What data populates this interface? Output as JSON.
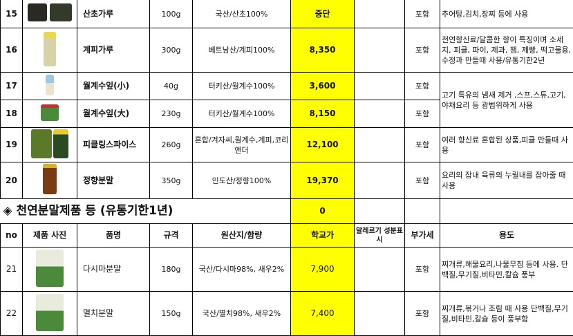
{
  "rows_top": [
    {
      "no": "15",
      "name": "산초가루",
      "spec": "100g",
      "origin": "국산/산초100%",
      "price": "중단",
      "allergy": "",
      "vat": "포함",
      "usage": "추어탕,김치,장찌 등에 사용",
      "image": "dark-jars"
    },
    {
      "no": "16",
      "name": "계피가루",
      "spec": "300g",
      "origin": "베트남산/계피100%",
      "price": "8,350",
      "allergy": "",
      "vat": "포함",
      "usage": "천연향신료/달콤한 향이 특징이며 소세지, 피클, 파이, 제과, 잼, 제빵, 떡고물용, 수정과 만들때 사용/유통기한2년",
      "image": "yellow-cap-bottle"
    },
    {
      "no": "17",
      "name": "월계수잎(小)",
      "spec": "40g",
      "origin": "터키산/월계수100%",
      "price": "3,600",
      "allergy": "",
      "vat": "포함",
      "usage": "고기 특유의 냄새 제거 ,스프,스튜,고기,야채요리 등 광범위하게 사용",
      "image": "small-jar"
    },
    {
      "no": "18",
      "name": "월계수잎(大)",
      "spec": "230g",
      "origin": "터키산/월계수100%",
      "price": "8,150",
      "allergy": "",
      "vat": "포함",
      "image": "leaf-jar"
    },
    {
      "no": "19",
      "name": "피클링스파이스",
      "spec": "260g",
      "origin": "혼합/겨자씨,월계수,계피,코리앤더",
      "price": "12,100",
      "allergy": "",
      "vat": "포함",
      "usage": "여러 향신료 혼합된 상품,피클 만들때 사용",
      "image": "green-box-jar"
    },
    {
      "no": "20",
      "name": "정향분말",
      "spec": "350g",
      "origin": "인도산/정향100%",
      "price": "19,370",
      "allergy": "",
      "vat": "포함",
      "usage": "요리의 잡내 육류의 누릴내를 잡아줄 때 사용",
      "image": "brown-bottle"
    }
  ],
  "section": {
    "marker": "◈",
    "title": "천연분말제품 등 (유통기한1년)",
    "price_total": "0"
  },
  "header": {
    "no": "no",
    "photo": "제품 사진",
    "name": "품명",
    "spec": "규격",
    "origin": "원산지/함량",
    "price": "학교가",
    "allergy": "알레르기 성분표시",
    "vat": "부가세",
    "usage": "용도"
  },
  "rows_bottom": [
    {
      "no": "21",
      "name": "다시마분말",
      "spec": "180g",
      "origin": "국산/다시마98%, 새우2%",
      "price": "7,900",
      "allergy": "",
      "vat": "포함",
      "usage": "찌개류,해물요리,나물무침 등에 사용. 단백질,무기질,비타민,칼슘 풍부",
      "image": "powder-jar"
    },
    {
      "no": "22",
      "name": "멸치분말",
      "spec": "150g",
      "origin": "국산/멸치98%, 새우2%",
      "price": "7,400",
      "allergy": "",
      "vat": "포함",
      "usage": "찌개류,볶거나 조림 때 사용 단백질,무기질,비타민,칼슘 등이 풍부함",
      "image": "powder-jar"
    }
  ],
  "colors": {
    "price_bg": "#ffff00",
    "border": "#000000"
  }
}
